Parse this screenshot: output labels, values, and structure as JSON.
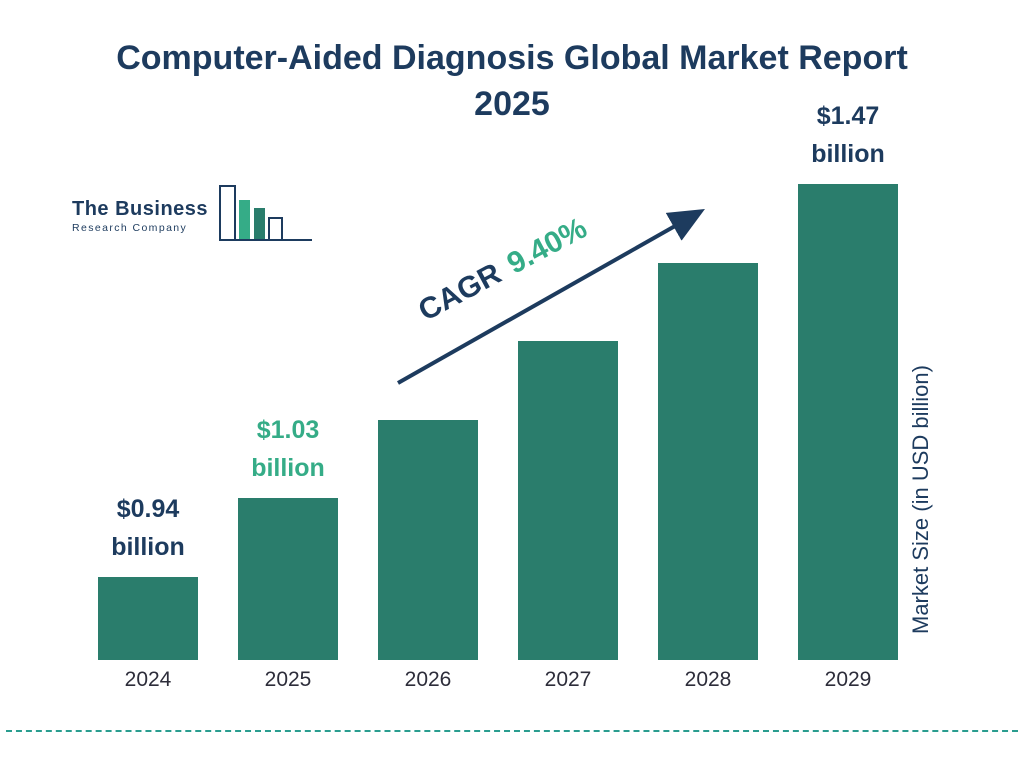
{
  "title": "Computer-Aided Diagnosis Global Market Report 2025",
  "logo": {
    "line1": "The Business",
    "line2": "Research Company"
  },
  "cagr": {
    "label": "CAGR",
    "value": "9.40%"
  },
  "y_axis_label": "Market Size (in USD billion)",
  "colors": {
    "bar": "#2a7d6c",
    "navy": "#1d3b5e",
    "green": "#35ac87",
    "dash": "#2a9d8f"
  },
  "chart_data": {
    "type": "bar",
    "title": "Computer-Aided Diagnosis Global Market Report 2025",
    "categories": [
      "2024",
      "2025",
      "2026",
      "2027",
      "2028",
      "2029"
    ],
    "values": [
      0.94,
      1.03,
      1.13,
      1.23,
      1.35,
      1.47
    ],
    "unit": "USD billion",
    "ylabel": "Market Size (in USD billion)",
    "cagr_percent": 9.4,
    "legend": "none",
    "grid": false,
    "data_labels": [
      {
        "index": 0,
        "line1": "$0.94",
        "line2": "billion",
        "color": "navy"
      },
      {
        "index": 1,
        "line1": "$1.03",
        "line2": "billion",
        "color": "green"
      },
      {
        "index": 5,
        "line1": "$1.47",
        "line2": "billion",
        "color": "navy"
      }
    ]
  }
}
